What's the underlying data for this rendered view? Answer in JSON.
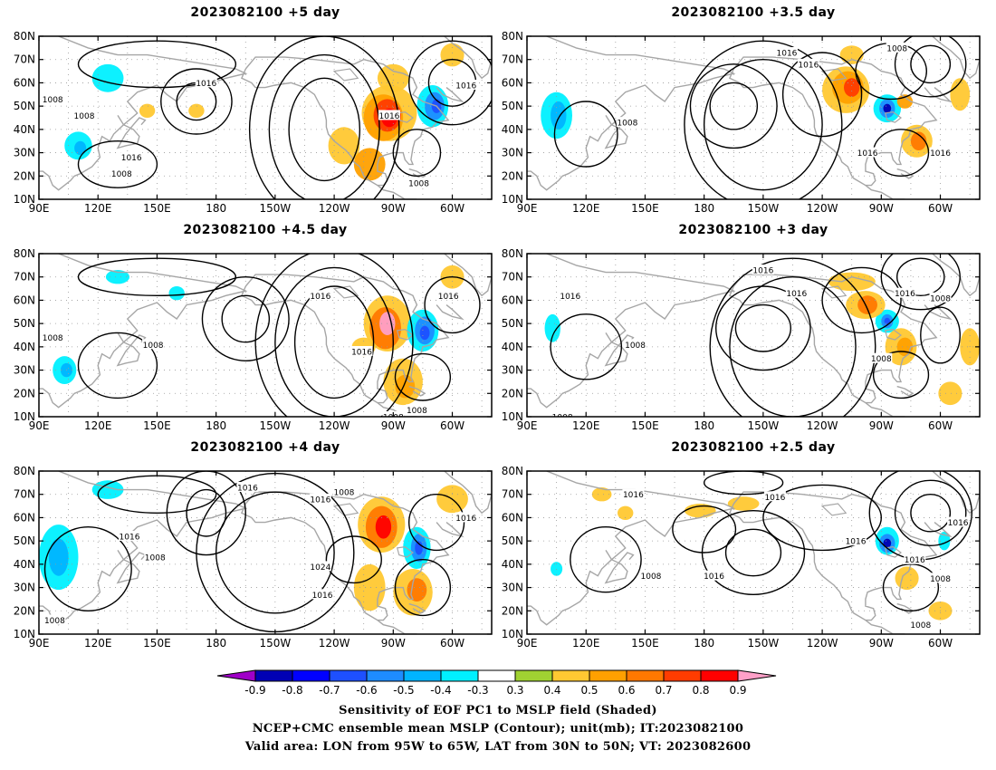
{
  "map_panels": [
    {
      "title": "2023082100  +5 day",
      "pos_hint": "top-left",
      "contour_labels": [
        "1008",
        "1016",
        "1008",
        "1016",
        "1008",
        "1016",
        "1016",
        "1008"
      ],
      "shading": [
        {
          "lon": -95,
          "lat": 47,
          "value": 0.8
        },
        {
          "lon": -70,
          "lat": 50,
          "value": -0.7
        },
        {
          "lon": 110,
          "lat": 33,
          "value": -0.5
        },
        {
          "lon": 125,
          "lat": 63,
          "value": -0.4
        },
        {
          "lon": -60,
          "lat": 70,
          "value": 0.4
        }
      ]
    },
    {
      "title": "2023082100  +3.5 day",
      "pos_hint": "top-right",
      "contour_labels": [
        "1016",
        "1016",
        "1008",
        "1008",
        "1016",
        "1016"
      ],
      "shading": [
        {
          "lon": -105,
          "lat": 58,
          "value": 0.7
        },
        {
          "lon": -87,
          "lat": 49,
          "value": -0.8
        },
        {
          "lon": 105,
          "lat": 46,
          "value": -0.5
        },
        {
          "lon": -72,
          "lat": 35,
          "value": 0.6
        },
        {
          "lon": -50,
          "lat": 55,
          "value": 0.5
        }
      ]
    },
    {
      "title": "2023082100  +4.5 day",
      "pos_hint": "middle-left",
      "contour_labels": [
        "1008",
        "1016",
        "1008",
        "1016",
        "1016",
        "1008",
        "1008"
      ],
      "shading": [
        {
          "lon": -93,
          "lat": 50,
          "value": 0.9
        },
        {
          "lon": -75,
          "lat": 47,
          "value": -0.7
        },
        {
          "lon": 103,
          "lat": 30,
          "value": -0.5
        },
        {
          "lon": -85,
          "lat": 25,
          "value": 0.5
        },
        {
          "lon": -65,
          "lat": 65,
          "value": 0.4
        }
      ]
    },
    {
      "title": "2023082100  +3 day",
      "pos_hint": "middle-right",
      "contour_labels": [
        "1016",
        "1016",
        "1016",
        "1016",
        "1008",
        "1008",
        "1008",
        "1008"
      ],
      "shading": [
        {
          "lon": -87,
          "lat": 51,
          "value": -0.7
        },
        {
          "lon": -100,
          "lat": 58,
          "value": 0.6
        },
        {
          "lon": -75,
          "lat": 40,
          "value": 0.5
        },
        {
          "lon": -55,
          "lat": 20,
          "value": 0.4
        },
        {
          "lon": 103,
          "lat": 48,
          "value": -0.4
        }
      ]
    },
    {
      "title": "2023082100  +4 day",
      "pos_hint": "bottom-left",
      "contour_labels": [
        "1016",
        "1008",
        "1016",
        "1016",
        "1016",
        "1008",
        "1024",
        "1016",
        "1008"
      ],
      "shading": [
        {
          "lon": -96,
          "lat": 57,
          "value": 0.8
        },
        {
          "lon": -78,
          "lat": 47,
          "value": -0.7
        },
        {
          "lon": 100,
          "lat": 43,
          "value": -0.6
        },
        {
          "lon": -75,
          "lat": 28,
          "value": 0.6
        },
        {
          "lon": -60,
          "lat": 65,
          "value": 0.4
        }
      ]
    },
    {
      "title": "2023082100  +2.5 day",
      "pos_hint": "bottom-right",
      "contour_labels": [
        "1016",
        "1016",
        "1016",
        "1008",
        "1008",
        "1016",
        "1016",
        "1016",
        "1008"
      ],
      "shading": [
        {
          "lon": -90,
          "lat": 49,
          "value": -0.8
        },
        {
          "lon": -75,
          "lat": 35,
          "value": 0.5
        },
        {
          "lon": -60,
          "lat": 20,
          "value": 0.4
        },
        {
          "lon": 178,
          "lat": 63,
          "value": 0.4
        },
        {
          "lon": 140,
          "lat": 62,
          "value": 0.4
        }
      ]
    }
  ],
  "axes": {
    "lat_ticks": [
      "80N",
      "70N",
      "60N",
      "50N",
      "40N",
      "30N",
      "20N",
      "10N"
    ],
    "lon_ticks": [
      "90E",
      "120E",
      "150E",
      "180",
      "150W",
      "120W",
      "90W",
      "60W"
    ],
    "lon_range": [
      90,
      320
    ],
    "lat_range": [
      10,
      80
    ]
  },
  "colorbar": {
    "labels": [
      "-0.9",
      "-0.8",
      "-0.7",
      "-0.6",
      "-0.5",
      "-0.4",
      "-0.3",
      "0.3",
      "0.4",
      "0.5",
      "0.6",
      "0.7",
      "0.8",
      "0.9"
    ],
    "colors": [
      "#a000c8",
      "#0000b4",
      "#0000ff",
      "#1e50ff",
      "#1e8cff",
      "#00b4ff",
      "#00f0ff",
      "#ffffff",
      "#a0d232",
      "#ffc832",
      "#ffa000",
      "#ff7800",
      "#ff3c00",
      "#ff0000",
      "#ffa0c8"
    ]
  },
  "caption": {
    "line1": "Sensitivity of EOF PC1 to MSLP field (Shaded)",
    "line2": "NCEP+CMC ensemble mean MSLP (Contour); unit(mb); IT:2023082100",
    "line3": "Valid area: LON from 95W to 65W, LAT from 30N to 50N; VT: 2023082600"
  }
}
